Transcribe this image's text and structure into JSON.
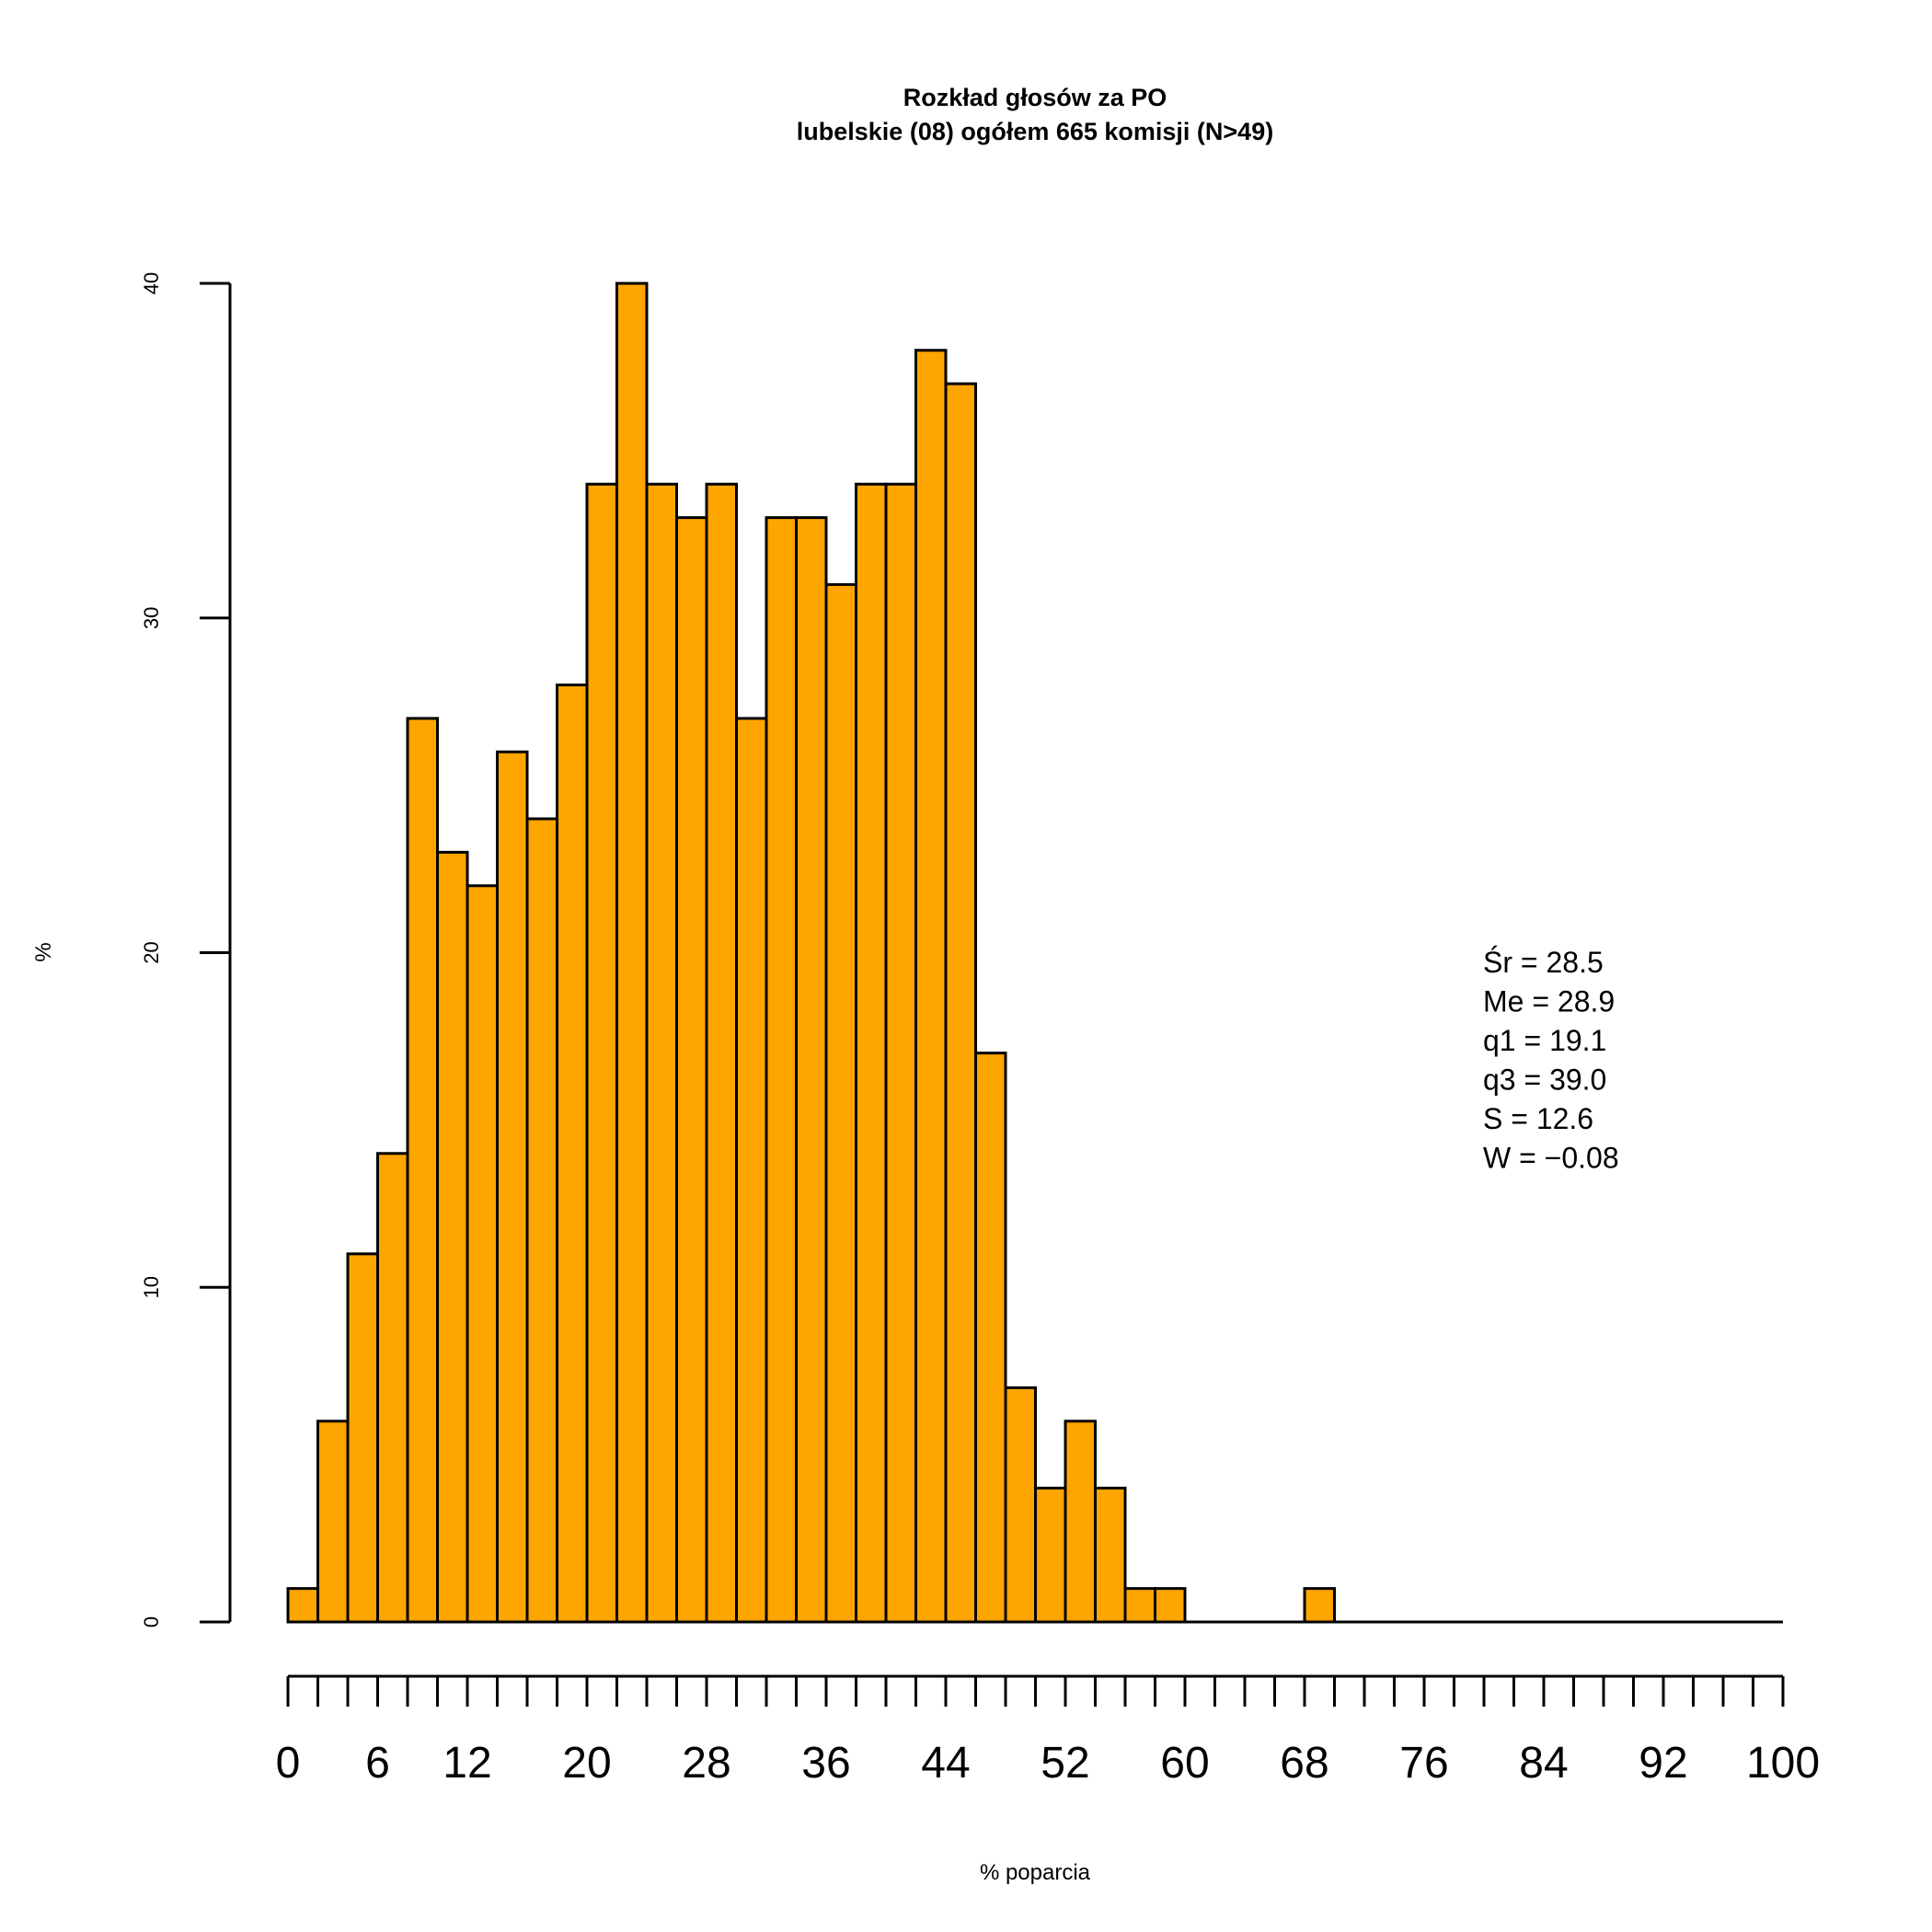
{
  "chart_data": {
    "type": "bar",
    "title": "Rozkład głosów za PO",
    "subtitle": "lubelskie (08) ogółem 665 komisji (N>49)",
    "xlabel": "% poparcia",
    "ylabel": "%",
    "bin_width": 2,
    "x_start": 0,
    "xlim": [
      0,
      100
    ],
    "ylim": [
      0,
      40
    ],
    "values": [
      1,
      6,
      11,
      14,
      27,
      23,
      22,
      26,
      24,
      28,
      34,
      40,
      34,
      33,
      34,
      27,
      33,
      33,
      31,
      34,
      34,
      38,
      37,
      17,
      7,
      4,
      6,
      4,
      1,
      1,
      0,
      0,
      0,
      0,
      1,
      0,
      0,
      0,
      0,
      0,
      0,
      0,
      0,
      0,
      0,
      0,
      0,
      0,
      0,
      0
    ],
    "xticks": [
      "0",
      "6",
      "12",
      "20",
      "28",
      "36",
      "44",
      "52",
      "60",
      "68",
      "76",
      "84",
      "92",
      "100"
    ],
    "yticks": [
      "0",
      "10",
      "20",
      "30",
      "40"
    ],
    "bar_color": "#FFA500",
    "grid": false,
    "legend": "none",
    "stats": [
      {
        "label": "Śr",
        "value": "28.5"
      },
      {
        "label": "Me",
        "value": "28.9"
      },
      {
        "label": "q1",
        "value": "19.1"
      },
      {
        "label": "q3",
        "value": "39.0"
      },
      {
        "label": "S",
        "value": "12.6"
      },
      {
        "label": "W",
        "value": "−0.08"
      }
    ]
  }
}
